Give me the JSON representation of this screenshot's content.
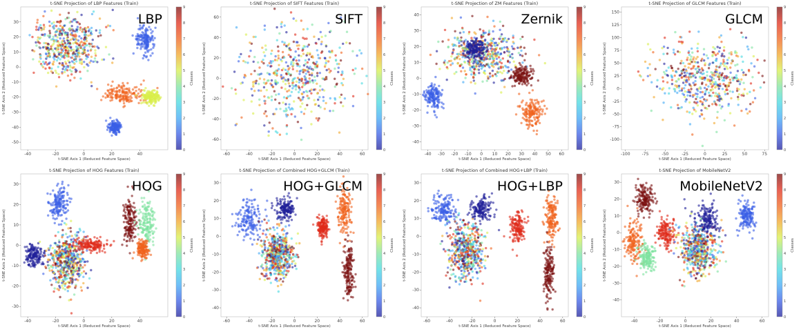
{
  "colorbar": {
    "label": "Classes",
    "ticks": [
      "0",
      "1",
      "2",
      "3",
      "4",
      "5",
      "6",
      "7",
      "8",
      "9"
    ]
  },
  "palette": [
    "#1f1f9a",
    "#3a5fe6",
    "#3fa9f5",
    "#45d9e0",
    "#7fe3a0",
    "#d8ef4a",
    "#f2a62a",
    "#f0621d",
    "#e02b1a",
    "#7a0f0f"
  ],
  "chart_data": [
    {
      "type": "scatter",
      "title": "t-SNE Projection of LBP Features (Train)",
      "label": "LBP",
      "xlabel": "t-SNE Axis 1 (Reduced Feature Space)",
      "ylabel": "t-SNE Axis 2 (Reduced Feature Space)",
      "xlim": [
        -45,
        60
      ],
      "ylim": [
        -55,
        40
      ],
      "xticks": [
        -40,
        -20,
        0,
        20,
        40
      ],
      "yticks": [
        30,
        20,
        10,
        0,
        -10,
        -20,
        -30,
        -40,
        -50
      ],
      "clusters": [
        {
          "class": "mixed",
          "center": [
            -12,
            14
          ],
          "spread": [
            22,
            18
          ]
        },
        {
          "class": 1,
          "center": [
            44,
            18
          ],
          "spread": [
            6,
            8
          ]
        },
        {
          "class": 7,
          "center": [
            28,
            -18
          ],
          "spread": [
            14,
            6
          ]
        },
        {
          "class": 5,
          "center": [
            48,
            -20
          ],
          "spread": [
            6,
            4
          ]
        },
        {
          "class": 1,
          "center": [
            22,
            -40
          ],
          "spread": [
            4,
            4
          ]
        }
      ]
    },
    {
      "type": "scatter",
      "title": "t-SNE Projection of SIFT Features (Train)",
      "label": "SIFT",
      "xlabel": "t-SNE Axis 1 (Reduced Feature Space)",
      "ylabel": "t-SNE Axis 2 (Reduced Feature Space)",
      "xlim": [
        -65,
        65
      ],
      "ylim": [
        -70,
        70
      ],
      "xticks": [
        -60,
        -40,
        -20,
        0,
        20,
        40,
        60
      ],
      "yticks": [
        60,
        40,
        20,
        0,
        -20,
        -40,
        -60
      ],
      "clusters": [
        {
          "class": "mixed",
          "center": [
            0,
            0
          ],
          "spread": [
            45,
            45
          ]
        }
      ]
    },
    {
      "type": "scatter",
      "title": "t-SNE Projection of ZM Features (Train)",
      "label": "Zernik",
      "xlabel": "t-SNE Axis 1 (Reduced Feature Space)",
      "ylabel": "t-SNE Axis 2 (Reduced Feature Space)",
      "xlim": [
        -45,
        65
      ],
      "ylim": [
        -45,
        45
      ],
      "xticks": [
        -40,
        -30,
        -20,
        -10,
        0,
        10,
        20,
        30,
        40,
        50,
        60
      ],
      "yticks": [
        40,
        30,
        20,
        10,
        0,
        -10,
        -20,
        -30,
        -40
      ],
      "clusters": [
        {
          "class": "mixed",
          "center": [
            0,
            15
          ],
          "spread": [
            25,
            15
          ]
        },
        {
          "class": 1,
          "center": [
            -36,
            -12
          ],
          "spread": [
            6,
            7
          ]
        },
        {
          "class": 9,
          "center": [
            30,
            2
          ],
          "spread": [
            8,
            6
          ]
        },
        {
          "class": 7,
          "center": [
            38,
            -22
          ],
          "spread": [
            8,
            8
          ]
        },
        {
          "class": 0,
          "center": [
            -5,
            18
          ],
          "spread": [
            8,
            6
          ]
        }
      ]
    },
    {
      "type": "scatter",
      "title": "t-SNE Projection of GLCM Features (Train)",
      "label": "GLCM",
      "xlabel": "t-SNE Axis 1 (Reduced Feature Space)",
      "ylabel": "t-SNE Axis 2 (Reduced Feature Space)",
      "xlim": [
        -105,
        80
      ],
      "ylim": [
        -120,
        160
      ],
      "xticks": [
        -100,
        -75,
        -50,
        -25,
        0,
        25,
        50,
        75
      ],
      "yticks": [
        150,
        125,
        100,
        75,
        50,
        25,
        0,
        -25,
        -50,
        -75,
        -100
      ],
      "clusters": [
        {
          "class": "mixed",
          "center": [
            0,
            20
          ],
          "spread": [
            60,
            70
          ]
        }
      ]
    },
    {
      "type": "scatter",
      "title": "t-SNE Projection of HOG Features (Train)",
      "label": "HOG",
      "xlabel": "t-SNE Axis 1 (Reduced Feature Space)",
      "ylabel": "t-SNE Axis 2 (Reduced Feature Space)",
      "xlim": [
        -45,
        60
      ],
      "ylim": [
        -35,
        35
      ],
      "xticks": [
        -40,
        -20,
        0,
        20,
        40
      ],
      "yticks": [
        30,
        20,
        10,
        0,
        -10,
        -20,
        -30
      ],
      "clusters": [
        {
          "class": 1,
          "center": [
            -18,
            20
          ],
          "spread": [
            6,
            8
          ]
        },
        {
          "class": 0,
          "center": [
            -35,
            -5
          ],
          "spread": [
            6,
            5
          ]
        },
        {
          "class": "mixed",
          "center": [
            -12,
            -8
          ],
          "spread": [
            12,
            12
          ]
        },
        {
          "class": 8,
          "center": [
            5,
            0
          ],
          "spread": [
            10,
            3
          ]
        },
        {
          "class": 9,
          "center": [
            33,
            12
          ],
          "spread": [
            4,
            12
          ]
        },
        {
          "class": 4,
          "center": [
            45,
            10
          ],
          "spread": [
            5,
            10
          ]
        },
        {
          "class": 7,
          "center": [
            42,
            -2
          ],
          "spread": [
            4,
            4
          ]
        }
      ]
    },
    {
      "type": "scatter",
      "title": "t-SNE Projection of Combined HOG+GLCM (Train)",
      "label": "HOG+GLCM",
      "xlabel": "t-SNE Axis 1 (Reduced Feature Space)",
      "ylabel": "t-SNE Axis 2 (Reduced Feature Space)",
      "xlim": [
        -65,
        65
      ],
      "ylim": [
        -45,
        35
      ],
      "xticks": [
        -60,
        -40,
        -20,
        0,
        20,
        40,
        60
      ],
      "yticks": [
        30,
        20,
        10,
        0,
        -10,
        -20,
        -30,
        -40
      ],
      "clusters": [
        {
          "class": 1,
          "center": [
            -40,
            10
          ],
          "spread": [
            12,
            10
          ]
        },
        {
          "class": "mixed",
          "center": [
            -15,
            -10
          ],
          "spread": [
            12,
            12
          ]
        },
        {
          "class": 0,
          "center": [
            -8,
            15
          ],
          "spread": [
            8,
            5
          ]
        },
        {
          "class": 8,
          "center": [
            25,
            5
          ],
          "spread": [
            5,
            6
          ]
        },
        {
          "class": 7,
          "center": [
            44,
            15
          ],
          "spread": [
            5,
            12
          ]
        },
        {
          "class": 9,
          "center": [
            48,
            -20
          ],
          "spread": [
            4,
            14
          ]
        }
      ]
    },
    {
      "type": "scatter",
      "title": "t-SNE Projection of Combined HOG+LBP (Train)",
      "label": "HOG+LBP",
      "xlabel": "t-SNE Axis 1 (Reduced Feature Space)",
      "ylabel": "t-SNE Axis 2 (Reduced Feature Space)",
      "xlim": [
        -65,
        65
      ],
      "ylim": [
        -45,
        35
      ],
      "xticks": [
        -60,
        -40,
        -20,
        0,
        20,
        40,
        60
      ],
      "yticks": [
        30,
        20,
        10,
        0,
        -10,
        -20,
        -30,
        -40
      ],
      "clusters": [
        {
          "class": 1,
          "center": [
            -45,
            15
          ],
          "spread": [
            10,
            8
          ]
        },
        {
          "class": "mixed",
          "center": [
            -25,
            -8
          ],
          "spread": [
            14,
            14
          ]
        },
        {
          "class": 0,
          "center": [
            -12,
            15
          ],
          "spread": [
            8,
            6
          ]
        },
        {
          "class": 8,
          "center": [
            20,
            5
          ],
          "spread": [
            6,
            8
          ]
        },
        {
          "class": 7,
          "center": [
            50,
            10
          ],
          "spread": [
            5,
            12
          ]
        },
        {
          "class": 9,
          "center": [
            48,
            -20
          ],
          "spread": [
            4,
            14
          ]
        }
      ]
    },
    {
      "type": "scatter",
      "title": "t-SNE Projection of MobileNetV2",
      "label": "MobileNetV2",
      "xlabel": "t-SNE Axis 1 (Reduced Feature Space)",
      "ylabel": "t-SNE Axis 2 (Reduced Feature Space)",
      "xlim": [
        -50,
        65
      ],
      "ylim": [
        -50,
        35
      ],
      "xticks": [
        -40,
        -20,
        0,
        20,
        40,
        60
      ],
      "yticks": [
        30,
        20,
        10,
        0,
        -10,
        -20,
        -30,
        -40
      ],
      "clusters": [
        {
          "class": 9,
          "center": [
            -32,
            20
          ],
          "spread": [
            6,
            8
          ]
        },
        {
          "class": 7,
          "center": [
            -40,
            -5
          ],
          "spread": [
            6,
            12
          ]
        },
        {
          "class": 8,
          "center": [
            -15,
            0
          ],
          "spread": [
            6,
            8
          ]
        },
        {
          "class": 4,
          "center": [
            -30,
            -15
          ],
          "spread": [
            6,
            8
          ]
        },
        {
          "class": "mixed",
          "center": [
            10,
            -10
          ],
          "spread": [
            14,
            14
          ]
        },
        {
          "class": 0,
          "center": [
            18,
            8
          ],
          "spread": [
            8,
            8
          ]
        },
        {
          "class": 1,
          "center": [
            48,
            10
          ],
          "spread": [
            6,
            8
          ]
        }
      ]
    }
  ]
}
